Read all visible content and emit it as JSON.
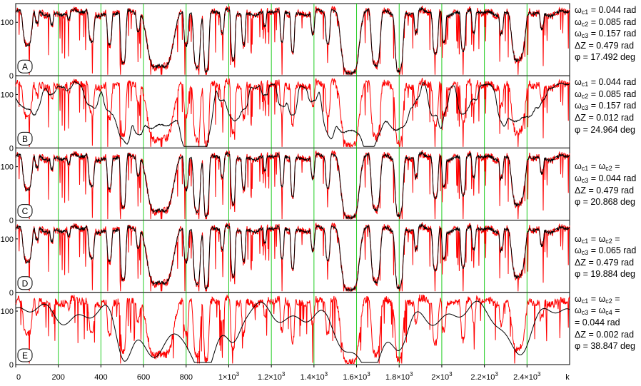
{
  "chart_data": {
    "type": "line",
    "x_axis": {
      "label": "k",
      "range": [
        0,
        2600
      ],
      "ticks": [
        {
          "value": 0,
          "base": "0",
          "exp": ""
        },
        {
          "value": 200,
          "base": "200",
          "exp": ""
        },
        {
          "value": 400,
          "base": "400",
          "exp": ""
        },
        {
          "value": 600,
          "base": "600",
          "exp": ""
        },
        {
          "value": 800,
          "base": "800",
          "exp": ""
        },
        {
          "value": 1000,
          "base": "1×10",
          "exp": "3"
        },
        {
          "value": 1200,
          "base": "1.2×10",
          "exp": "3"
        },
        {
          "value": 1400,
          "base": "1.4×10",
          "exp": "3"
        },
        {
          "value": 1600,
          "base": "1.6×10",
          "exp": "3"
        },
        {
          "value": 1800,
          "base": "1.8×10",
          "exp": "3"
        },
        {
          "value": 2000,
          "base": "2×10",
          "exp": "3"
        },
        {
          "value": 2200,
          "base": "2.2×10",
          "exp": "3"
        },
        {
          "value": 2400,
          "base": "2.4×10",
          "exp": "3"
        }
      ]
    },
    "y_axis": {
      "range": [
        0,
        135
      ],
      "ticks": [
        0,
        100
      ]
    },
    "grid": {
      "vertical_lines_at": [
        200,
        400,
        600,
        800,
        1000,
        1200,
        1400,
        1600,
        1800,
        2000,
        2200,
        2400
      ],
      "color": "#22cc22"
    },
    "series_colors": {
      "measured": "#ff0000",
      "model": "#000000"
    },
    "profile": {
      "baseline": 118,
      "dips": [
        {
          "center": 55,
          "halfwidth": 20,
          "depth": 62
        },
        {
          "center": 100,
          "halfwidth": 8,
          "depth": 25
        },
        {
          "center": 170,
          "halfwidth": 7,
          "depth": 20
        },
        {
          "center": 250,
          "halfwidth": 6,
          "depth": 15
        },
        {
          "center": 355,
          "halfwidth": 12,
          "depth": 55
        },
        {
          "center": 440,
          "halfwidth": 10,
          "depth": 60
        },
        {
          "center": 505,
          "halfwidth": 12,
          "depth": 100
        },
        {
          "center": 575,
          "halfwidth": 8,
          "depth": 35
        },
        {
          "center": 680,
          "halfwidth": 60,
          "depth": 100
        },
        {
          "center": 800,
          "halfwidth": 10,
          "depth": 60
        },
        {
          "center": 850,
          "halfwidth": 15,
          "depth": 100
        },
        {
          "center": 895,
          "halfwidth": 12,
          "depth": 105
        },
        {
          "center": 970,
          "halfwidth": 8,
          "depth": 40
        },
        {
          "center": 1020,
          "halfwidth": 10,
          "depth": 90
        },
        {
          "center": 1070,
          "halfwidth": 8,
          "depth": 60
        },
        {
          "center": 1170,
          "halfwidth": 6,
          "depth": 30
        },
        {
          "center": 1250,
          "halfwidth": 8,
          "depth": 60
        },
        {
          "center": 1300,
          "halfwidth": 8,
          "depth": 70
        },
        {
          "center": 1395,
          "halfwidth": 8,
          "depth": 40
        },
        {
          "center": 1465,
          "halfwidth": 10,
          "depth": 60
        },
        {
          "center": 1570,
          "halfwidth": 40,
          "depth": 112
        },
        {
          "center": 1690,
          "halfwidth": 20,
          "depth": 100
        },
        {
          "center": 1800,
          "halfwidth": 18,
          "depth": 105
        },
        {
          "center": 1880,
          "halfwidth": 8,
          "depth": 40
        },
        {
          "center": 1970,
          "halfwidth": 12,
          "depth": 80
        },
        {
          "center": 2010,
          "halfwidth": 8,
          "depth": 50
        },
        {
          "center": 2100,
          "halfwidth": 10,
          "depth": 70
        },
        {
          "center": 2150,
          "halfwidth": 8,
          "depth": 45
        },
        {
          "center": 2280,
          "halfwidth": 8,
          "depth": 35
        },
        {
          "center": 2360,
          "halfwidth": 30,
          "depth": 90
        },
        {
          "center": 2470,
          "halfwidth": 8,
          "depth": 30
        }
      ]
    },
    "panels": [
      {
        "id": "A",
        "label": "A",
        "model_smoothing": 0,
        "params": [
          {
            "sym": "ω",
            "sub": "c1",
            "text": " = 0.044 rad"
          },
          {
            "sym": "ω",
            "sub": "c2",
            "text": " = 0.085 rad"
          },
          {
            "sym": "ω",
            "sub": "c3",
            "text": " = 0.157 rad"
          },
          {
            "sym": "ΔZ",
            "sub": "",
            "text": " = 0.479 rad"
          },
          {
            "sym": "φ",
            "sub": "",
            "text": " = 17.492 deg"
          }
        ]
      },
      {
        "id": "B",
        "label": "B",
        "model_smoothing": 1,
        "params": [
          {
            "sym": "ω",
            "sub": "c1",
            "text": " = 0.044 rad"
          },
          {
            "sym": "ω",
            "sub": "c2",
            "text": " = 0.085 rad"
          },
          {
            "sym": "ω",
            "sub": "c3",
            "text": " = 0.157 rad"
          },
          {
            "sym": "ΔZ",
            "sub": "",
            "text": " = 0.012 rad"
          },
          {
            "sym": "φ",
            "sub": "",
            "text": " = 24.964 deg"
          }
        ]
      },
      {
        "id": "C",
        "label": "C",
        "model_smoothing": 0,
        "params": [
          {
            "sym": "ω",
            "sub": "c1",
            "text": " = ω",
            "sub2": "c2",
            "text2": " ="
          },
          {
            "sym": "ω",
            "sub": "c3",
            "text": " = 0.044 rad"
          },
          {
            "sym": "ΔZ",
            "sub": "",
            "text": " = 0.479 rad"
          },
          {
            "sym": "φ",
            "sub": "",
            "text": " = 20.868 deg"
          }
        ]
      },
      {
        "id": "D",
        "label": "D",
        "model_smoothing": 0,
        "params": [
          {
            "sym": "ω",
            "sub": "c1",
            "text": " = ω",
            "sub2": "c2",
            "text2": " ="
          },
          {
            "sym": "ω",
            "sub": "c3",
            "text": " = 0.065 rad"
          },
          {
            "sym": "ΔZ",
            "sub": "",
            "text": " = 0.479 rad"
          },
          {
            "sym": "φ",
            "sub": "",
            "text": " = 19.884 deg"
          }
        ]
      },
      {
        "id": "E",
        "label": "E",
        "model_smoothing": 3,
        "params": [
          {
            "sym": "ω",
            "sub": "c1",
            "text": " = ω",
            "sub2": "c2",
            "text2": " ="
          },
          {
            "sym": "ω",
            "sub": "c3",
            "text": " = ω",
            "sub2": "c4",
            "text2": " ="
          },
          {
            "sym": "",
            "sub": "",
            "text": "= 0.044 rad"
          },
          {
            "sym": "ΔZ",
            "sub": "",
            "text": " = 0.002 rad"
          },
          {
            "sym": "φ",
            "sub": "",
            "text": " = 38.847 deg"
          }
        ]
      }
    ]
  }
}
